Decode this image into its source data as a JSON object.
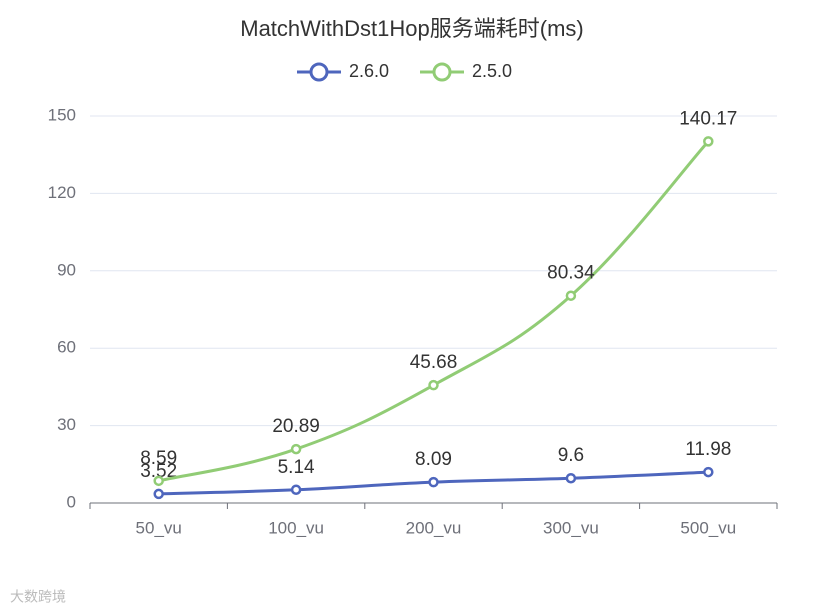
{
  "chart_data": {
    "type": "line",
    "title": "MatchWithDst1Hop服务端耗时(ms)",
    "categories": [
      "50_vu",
      "100_vu",
      "200_vu",
      "300_vu",
      "500_vu"
    ],
    "series": [
      {
        "name": "2.6.0",
        "color": "#4e66bd",
        "values": [
          3.52,
          5.14,
          8.09,
          9.6,
          11.98
        ]
      },
      {
        "name": "2.5.0",
        "color": "#91cc75",
        "values": [
          8.59,
          20.89,
          45.68,
          80.34,
          140.17
        ]
      }
    ],
    "ylim": [
      0,
      150
    ],
    "yticks": [
      0,
      30,
      60,
      90,
      120,
      150
    ],
    "grid": true,
    "smooth": true,
    "legend": "top"
  },
  "watermark": "大数跨境"
}
